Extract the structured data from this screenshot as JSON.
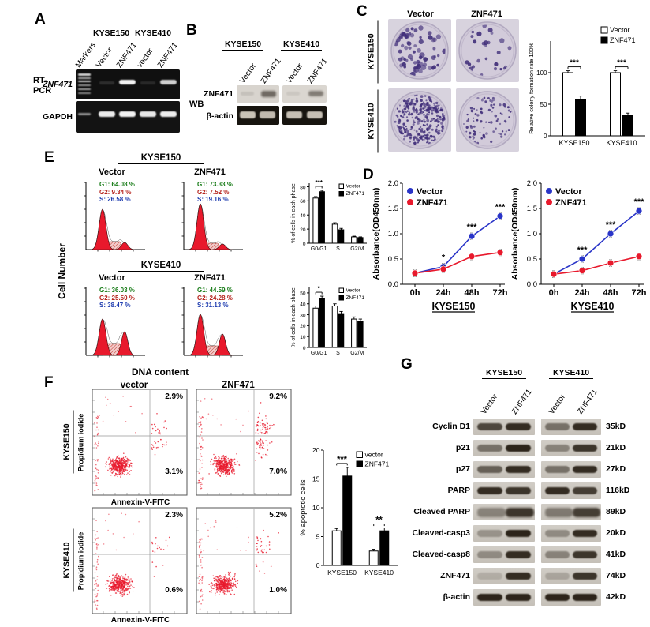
{
  "colors": {
    "vector_line": "#2a35c8",
    "znf471_line": "#e8192c",
    "g1_text": "#157a15",
    "g2_text": "#b5231c",
    "s_text": "#1f3db0",
    "colony": "#412f7a"
  },
  "panelA": {
    "label": "A",
    "cell_lines": [
      "KYSE150",
      "KYSE410"
    ],
    "lanes": [
      "Markers",
      "Vector",
      "ZNF471",
      "vector",
      "ZNF471"
    ],
    "method_line1": "RT-",
    "method_line2": "PCR",
    "row1": "ZNF471",
    "row2": "GAPDH"
  },
  "panelB": {
    "label": "B",
    "cell_lines": [
      "KYSE150",
      "KYSE410"
    ],
    "lanes": [
      "Vector",
      "ZNF471",
      "Vector",
      "ZNF471"
    ],
    "method": "WB",
    "row1": "ZNF471",
    "row2": "β-actin"
  },
  "panelC": {
    "label": "C",
    "col_headers": [
      "Vector",
      "ZNF471"
    ],
    "row_headers": [
      "KYSE150",
      "KYSE410"
    ]
  },
  "panelD": {
    "label": "D"
  },
  "panelE": {
    "label": "E",
    "group1": "KYSE150",
    "group2": "KYSE410",
    "col1": "Vector",
    "col2": "ZNF471",
    "ylabel": "Cell Number",
    "xlabel": "DNA content",
    "stats": {
      "k150_vector": {
        "g1": "G1: 64.08 %",
        "g2": "G2: 9.34 %",
        "s": "S: 26.58 %"
      },
      "k150_znf471": {
        "g1": "G1: 73.33 %",
        "g2": "G2: 7.52 %",
        "s": "S: 19.16 %"
      },
      "k410_vector": {
        "g1": "G1: 36.03 %",
        "g2": "G2: 25.50 %",
        "s": "S: 38.47 %"
      },
      "k410_znf471": {
        "g1": "G1: 44.59 %",
        "g2": "G2: 24.28 %",
        "s": "S: 31.13 %"
      }
    }
  },
  "panelF": {
    "label": "F",
    "col1": "vector",
    "col2": "ZNF471",
    "row1": "KYSE150",
    "row2": "KYSE410",
    "ylabel": "Propidium iodide",
    "xlabel": "Annexin-V-FITC",
    "quadrants": {
      "k150_vector": {
        "upper": "2.9%",
        "lower": "3.1%"
      },
      "k150_znf471": {
        "upper": "9.2%",
        "lower": "7.0%"
      },
      "k410_vector": {
        "upper": "2.3%",
        "lower": "0.6%"
      },
      "k410_znf471": {
        "upper": "5.2%",
        "lower": "1.0%"
      }
    }
  },
  "panelG": {
    "label": "G",
    "cell_lines": [
      "KYSE150",
      "KYSE410"
    ],
    "lanes": [
      "Vector",
      "ZNF471",
      "Vector",
      "ZNF471"
    ],
    "rows": [
      {
        "protein": "Cyclin D1",
        "size": "35kD"
      },
      {
        "protein": "p21",
        "size": "21kD"
      },
      {
        "protein": "p27",
        "size": "27kD"
      },
      {
        "protein": "PARP",
        "size": "116kD"
      },
      {
        "protein": "Cleaved PARP",
        "size": "89kD"
      },
      {
        "protein": "Cleaved-casp3",
        "size": "20kD"
      },
      {
        "protein": "Cleaved-casp8",
        "size": "41kD"
      },
      {
        "protein": "ZNF471",
        "size": "74kD"
      },
      {
        "protein": "β-actin",
        "size": "42kD"
      }
    ]
  },
  "chart_data": [
    {
      "id": "colony_bar",
      "type": "bar",
      "categories": [
        "KYSE150",
        "KYSE410"
      ],
      "series": [
        {
          "name": "Vector",
          "fill": "#ffffff",
          "values": [
            100,
            100
          ],
          "errors": [
            3,
            3
          ]
        },
        {
          "name": "ZNF471",
          "fill": "#000000",
          "values": [
            57,
            32
          ],
          "errors": [
            6,
            4
          ]
        }
      ],
      "ylabel": "Relative colony formation rate 100%",
      "ylim": [
        0,
        150
      ],
      "yticks": [
        0,
        50,
        100
      ],
      "sig": [
        "***",
        "***"
      ]
    },
    {
      "id": "growth_kyse150",
      "type": "line",
      "title": "KYSE150",
      "x": [
        "0h",
        "24h",
        "48h",
        "72h"
      ],
      "series": [
        {
          "name": "Vector",
          "color": "#2a35c8",
          "values": [
            0.22,
            0.35,
            0.95,
            1.35
          ]
        },
        {
          "name": "ZNF471",
          "color": "#e8192c",
          "values": [
            0.22,
            0.3,
            0.55,
            0.63
          ]
        }
      ],
      "ylabel": "Absorbance(OD450nm)",
      "ylim": [
        0,
        2.0
      ],
      "yticks": [
        0.0,
        0.5,
        1.0,
        1.5,
        2.0
      ],
      "sig": [
        "",
        "*",
        "***",
        "***"
      ]
    },
    {
      "id": "growth_kyse410",
      "type": "line",
      "title": "KYSE410",
      "x": [
        "0h",
        "24h",
        "48h",
        "72h"
      ],
      "series": [
        {
          "name": "Vector",
          "color": "#2a35c8",
          "values": [
            0.2,
            0.5,
            1.0,
            1.45
          ]
        },
        {
          "name": "ZNF471",
          "color": "#e8192c",
          "values": [
            0.2,
            0.27,
            0.42,
            0.55
          ]
        }
      ],
      "ylabel": "Absorbance(OD450nm)",
      "ylim": [
        0,
        2.0
      ],
      "yticks": [
        0.0,
        0.5,
        1.0,
        1.5,
        2.0
      ],
      "sig": [
        "",
        "***",
        "***",
        "***"
      ]
    },
    {
      "id": "cycle_kyse150",
      "type": "bar",
      "categories": [
        "G0/G1",
        "S",
        "G2/M"
      ],
      "series": [
        {
          "name": "Vector",
          "fill": "#ffffff",
          "values": [
            64,
            27,
            9
          ],
          "errors": [
            2,
            2,
            1
          ]
        },
        {
          "name": "ZNF471",
          "fill": "#000000",
          "values": [
            73,
            19,
            8
          ],
          "errors": [
            2,
            2,
            1
          ]
        }
      ],
      "ylabel": "% of cells in each phase",
      "ylim": [
        0,
        85
      ],
      "yticks": [
        0,
        20,
        40,
        60,
        80
      ],
      "sig": [
        "***",
        "",
        ""
      ]
    },
    {
      "id": "cycle_kyse410",
      "type": "bar",
      "categories": [
        "G0/G1",
        "S",
        "G2/M"
      ],
      "series": [
        {
          "name": "Vector",
          "fill": "#ffffff",
          "values": [
            36,
            38,
            26
          ],
          "errors": [
            2,
            2,
            2
          ]
        },
        {
          "name": "ZNF471",
          "fill": "#000000",
          "values": [
            45,
            31,
            24
          ],
          "errors": [
            2,
            2,
            2
          ]
        }
      ],
      "ylabel": "% of cells in each phase",
      "ylim": [
        0,
        55
      ],
      "yticks": [
        0,
        10,
        20,
        30,
        40,
        50
      ],
      "sig": [
        "*",
        "",
        ""
      ]
    },
    {
      "id": "apoptosis_bar",
      "type": "bar",
      "categories": [
        "KYSE150",
        "KYSE410"
      ],
      "series": [
        {
          "name": "vector",
          "fill": "#ffffff",
          "values": [
            6.0,
            2.5
          ],
          "errors": [
            0.4,
            0.3
          ]
        },
        {
          "name": "ZNF471",
          "fill": "#000000",
          "values": [
            15.5,
            6.0
          ],
          "errors": [
            1.5,
            0.5
          ]
        }
      ],
      "ylabel": "% apoptotic cells",
      "ylim": [
        0,
        20
      ],
      "yticks": [
        0,
        5,
        10,
        15,
        20
      ],
      "sig": [
        "***",
        "**"
      ]
    }
  ]
}
